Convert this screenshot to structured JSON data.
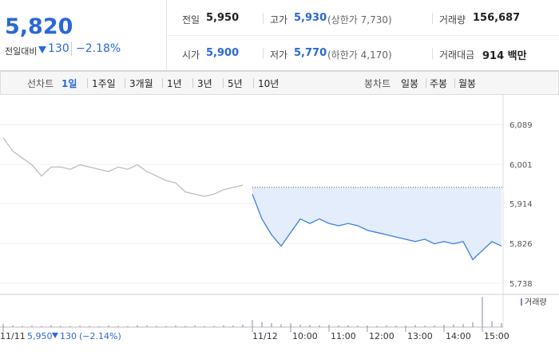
{
  "header": {
    "price": "5,820",
    "change_label": "전일대비",
    "change": "130",
    "rate": "−2.18%"
  },
  "table": {
    "rows": [
      [
        {
          "label": "전일",
          "value": "5,950",
          "color": "#222"
        },
        {
          "label": "고가",
          "value": "5,930",
          "note": "(상한가 7,730)",
          "color": "#2a68d4"
        },
        {
          "label": "거래량",
          "value": "156,687",
          "color": "#222"
        }
      ],
      [
        {
          "label": "시가",
          "value": "5,900",
          "color": "#2a68d4"
        },
        {
          "label": "저가",
          "value": "5,770",
          "note": "(하한가 4,170)",
          "color": "#2a68d4"
        },
        {
          "label": "거래대금",
          "value": "914 백만",
          "color": "#222"
        }
      ]
    ]
  },
  "tabs": {
    "line_label": "선차트",
    "line": [
      "1일",
      "1주일",
      "3개월",
      "1년",
      "3년",
      "5년",
      "10년"
    ],
    "selected_index": 0,
    "candle_label": "봉차트",
    "candle": [
      "일봉",
      "주봉",
      "월봉"
    ]
  },
  "chart_data": {
    "type": "line",
    "categories": [
      "11/11",
      null,
      null,
      null,
      null,
      null,
      null,
      null,
      null,
      null,
      null,
      null,
      null,
      null,
      null,
      null,
      null,
      null,
      null,
      null,
      null,
      null,
      null,
      null,
      null,
      null,
      "11/12",
      null,
      null,
      null,
      "10:00",
      null,
      null,
      null,
      "11:00",
      null,
      null,
      null,
      "12:00",
      null,
      null,
      null,
      "13:00",
      null,
      null,
      null,
      "14:00",
      null,
      null,
      null,
      "15:00",
      null,
      null
    ],
    "series": [
      {
        "color": "#bdbdbd",
        "values": [
          6060,
          6030,
          6015,
          6000,
          5975,
          5995,
          5995,
          5990,
          6000,
          5995,
          5990,
          5985,
          5995,
          5990,
          6000,
          5985,
          5975,
          5965,
          5960,
          5940,
          5935,
          5930,
          5935,
          5945,
          5950,
          5955,
          null,
          null,
          null,
          null,
          null,
          null,
          null,
          null,
          null,
          null,
          null,
          null,
          null,
          null,
          null,
          null,
          null,
          null,
          null,
          null,
          null,
          null,
          null,
          null,
          null,
          null,
          null
        ]
      },
      {
        "color": "#3b7fdd",
        "values": [
          null,
          null,
          null,
          null,
          null,
          null,
          null,
          null,
          null,
          null,
          null,
          null,
          null,
          null,
          null,
          null,
          null,
          null,
          null,
          null,
          null,
          null,
          null,
          null,
          null,
          null,
          5935,
          5880,
          5845,
          5820,
          5850,
          5880,
          5870,
          5880,
          5870,
          5865,
          5870,
          5865,
          5855,
          5850,
          5845,
          5840,
          5835,
          5830,
          5835,
          5825,
          5830,
          5825,
          5830,
          5790,
          5810,
          5830,
          5820
        ]
      }
    ],
    "reference": 5950,
    "area_color": "#e4edfb",
    "volume": {
      "name": "거래량",
      "color": "#8c7bb5",
      "values": [
        1500,
        800,
        600,
        700,
        500,
        900,
        600,
        500,
        700,
        600,
        500,
        800,
        600,
        500,
        900,
        700,
        600,
        500,
        800,
        600,
        700,
        500,
        600,
        900,
        800,
        1200,
        3500,
        2500,
        2000,
        1500,
        1800,
        1200,
        1000,
        900,
        1100,
        800,
        900,
        700,
        800,
        600,
        900,
        700,
        800,
        1000,
        700,
        900,
        1100,
        1300,
        1500,
        2500,
        15000,
        3000,
        2000
      ]
    },
    "ylim": [
      5720,
      6130
    ],
    "yticks": [
      {
        "value": 6089,
        "label": "6,089"
      },
      {
        "value": 6001,
        "label": "6,001"
      },
      {
        "value": 5914,
        "label": "5,914"
      },
      {
        "value": 5826,
        "label": "5,826"
      },
      {
        "value": 5738,
        "label": "5,738"
      }
    ],
    "grid": true
  },
  "status": {
    "date": "11/11",
    "price": "5,950",
    "change": "130",
    "rate": "(−2.14%)"
  }
}
